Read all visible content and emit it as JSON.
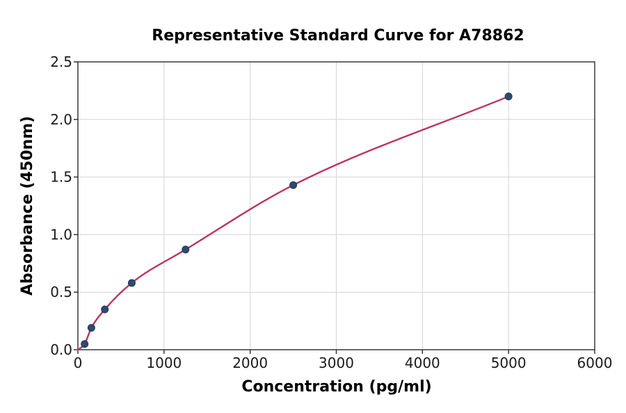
{
  "figure": {
    "background": "#ffffff"
  },
  "colors": {
    "curve": "#bc3360",
    "point_fill": "#2d4b6e",
    "point_edge": "#203a57",
    "grid": "#d4d4d4",
    "spine": "#2a2a2a",
    "tick": "#262626"
  },
  "chart_data": {
    "type": "scatter",
    "title": "Representative Standard Curve for A78862",
    "xlabel": "Concentration (pg/ml)",
    "ylabel": "Absorbance (450nm)",
    "xlim": [
      0,
      6000
    ],
    "ylim": [
      0,
      2.5
    ],
    "grid": true,
    "legend": "none",
    "x_ticks": [
      {
        "value": 0,
        "label": "0"
      },
      {
        "value": 1000,
        "label": "1000"
      },
      {
        "value": 2000,
        "label": "2000"
      },
      {
        "value": 3000,
        "label": "3000"
      },
      {
        "value": 4000,
        "label": "4000"
      },
      {
        "value": 5000,
        "label": "5000"
      },
      {
        "value": 6000,
        "label": "6000"
      }
    ],
    "y_ticks": [
      {
        "value": 0.0,
        "label": "0.0"
      },
      {
        "value": 0.5,
        "label": "0.5"
      },
      {
        "value": 1.0,
        "label": "1.0"
      },
      {
        "value": 1.5,
        "label": "1.5"
      },
      {
        "value": 2.0,
        "label": "2.0"
      },
      {
        "value": 2.5,
        "label": "2.5"
      }
    ],
    "series": [
      {
        "name": "fit-curve",
        "type": "line",
        "color": "#bc3360",
        "x": [
          0,
          78.125,
          156.25,
          312.5,
          625,
          1250,
          2500,
          5000
        ],
        "y": [
          0.0,
          0.05,
          0.19,
          0.35,
          0.58,
          0.87,
          1.43,
          2.2
        ]
      },
      {
        "name": "standard-points",
        "type": "scatter",
        "color": "#2d4b6e",
        "x": [
          78.125,
          156.25,
          312.5,
          625,
          1250,
          2500,
          5000
        ],
        "y": [
          0.05,
          0.19,
          0.35,
          0.58,
          0.87,
          1.43,
          2.2
        ]
      }
    ]
  }
}
